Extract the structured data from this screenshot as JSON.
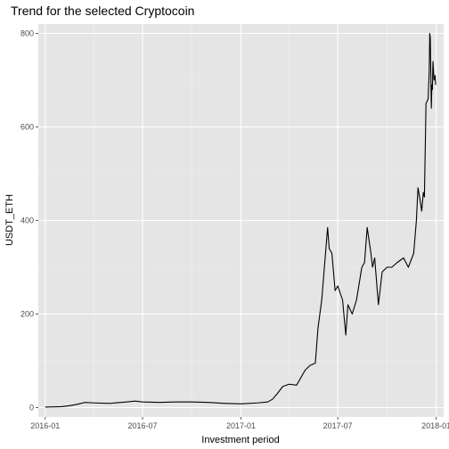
{
  "chart_data": {
    "type": "line",
    "title": "Trend for the selected Cryptocoin",
    "xlabel": "Investment period",
    "ylabel": "USDT_ETH",
    "x_ticks": [
      "2016-01",
      "2016-07",
      "2017-01",
      "2017-07",
      "2018-01"
    ],
    "y_ticks": [
      "0",
      "200",
      "400",
      "600",
      "800"
    ],
    "xlim": [
      "2015-12-19",
      "2018-01-15"
    ],
    "ylim": [
      -20,
      820
    ],
    "grid": true,
    "series": [
      {
        "color": "#000000",
        "x": [
          "2016-01-01",
          "2016-02-01",
          "2016-02-15",
          "2016-03-01",
          "2016-03-15",
          "2016-04-01",
          "2016-05-01",
          "2016-06-01",
          "2016-06-17",
          "2016-07-01",
          "2016-08-01",
          "2016-09-01",
          "2016-10-01",
          "2016-11-01",
          "2016-12-01",
          "2017-01-01",
          "2017-02-01",
          "2017-02-20",
          "2017-03-01",
          "2017-03-10",
          "2017-03-20",
          "2017-04-01",
          "2017-04-15",
          "2017-05-01",
          "2017-05-10",
          "2017-05-20",
          "2017-05-25",
          "2017-06-01",
          "2017-06-12",
          "2017-06-15",
          "2017-06-20",
          "2017-06-26",
          "2017-07-01",
          "2017-07-10",
          "2017-07-16",
          "2017-07-20",
          "2017-07-28",
          "2017-08-05",
          "2017-08-15",
          "2017-08-20",
          "2017-08-25",
          "2017-09-01",
          "2017-09-04",
          "2017-09-08",
          "2017-09-15",
          "2017-09-22",
          "2017-10-01",
          "2017-10-10",
          "2017-10-20",
          "2017-11-01",
          "2017-11-10",
          "2017-11-20",
          "2017-11-25",
          "2017-11-28",
          "2017-12-01",
          "2017-12-05",
          "2017-12-08",
          "2017-12-10",
          "2017-12-13",
          "2017-12-17",
          "2017-12-19",
          "2017-12-20",
          "2017-12-21",
          "2017-12-23",
          "2017-12-24",
          "2017-12-25",
          "2017-12-26",
          "2017-12-28",
          "2017-12-30",
          "2017-12-31"
        ],
        "values": [
          1,
          2,
          4,
          7,
          11,
          10,
          9,
          12,
          14,
          12,
          11,
          12,
          12,
          11,
          9,
          8,
          10,
          12,
          18,
          30,
          45,
          50,
          48,
          80,
          90,
          95,
          170,
          230,
          385,
          340,
          330,
          250,
          260,
          230,
          155,
          220,
          200,
          230,
          300,
          310,
          385,
          330,
          300,
          320,
          220,
          290,
          300,
          300,
          310,
          320,
          300,
          330,
          400,
          470,
          450,
          420,
          460,
          450,
          650,
          660,
          720,
          800,
          790,
          640,
          690,
          680,
          740,
          700,
          710,
          690
        ]
      }
    ]
  }
}
